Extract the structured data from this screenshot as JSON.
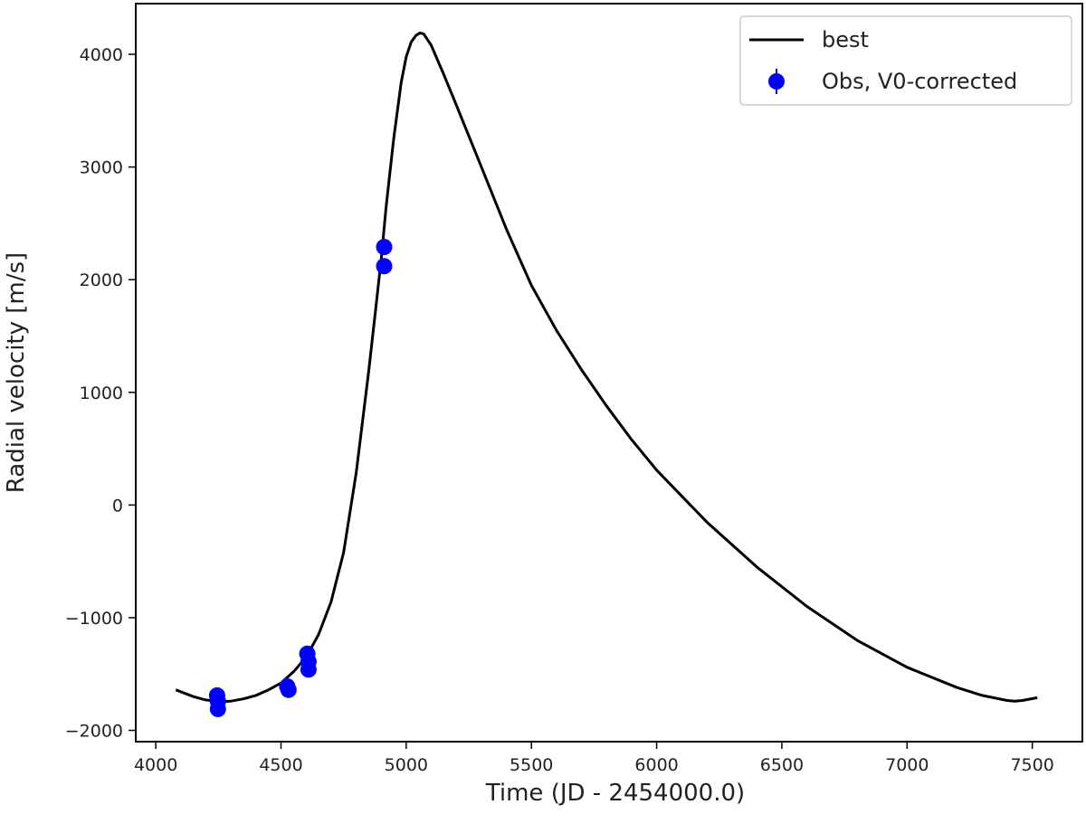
{
  "chart_data": {
    "type": "line",
    "xlabel": "Time (JD - 2454000.0)",
    "ylabel": "Radial velocity [m/s]",
    "xlim": [
      3920,
      7700
    ],
    "ylim": [
      -2100,
      4450
    ],
    "xticks": [
      4000,
      4500,
      5000,
      5500,
      6000,
      6500,
      7000,
      7500
    ],
    "yticks": [
      -2000,
      -1000,
      0,
      1000,
      2000,
      3000,
      4000
    ],
    "xtick_labels": [
      "4000",
      "4500",
      "5000",
      "5500",
      "6000",
      "6500",
      "7000",
      "7500"
    ],
    "ytick_labels": [
      "−2000",
      "−1000",
      "0",
      "1000",
      "2000",
      "3000",
      "4000"
    ],
    "legend_position": "top-right",
    "colors": {
      "model": "#000000",
      "observations": "#0000ff"
    },
    "series": [
      {
        "name": "best",
        "kind": "line",
        "x": [
          4080,
          4150,
          4200,
          4260,
          4300,
          4350,
          4400,
          4450,
          4500,
          4550,
          4600,
          4650,
          4700,
          4750,
          4800,
          4850,
          4880,
          4900,
          4920,
          4950,
          4980,
          5000,
          5020,
          5040,
          5055,
          5070,
          5100,
          5150,
          5200,
          5300,
          5400,
          5500,
          5600,
          5700,
          5800,
          5900,
          6000,
          6200,
          6400,
          6600,
          6800,
          7000,
          7200,
          7300,
          7400,
          7430,
          7460,
          7520
        ],
        "y": [
          -1640,
          -1700,
          -1730,
          -1745,
          -1740,
          -1720,
          -1690,
          -1640,
          -1580,
          -1480,
          -1350,
          -1150,
          -860,
          -420,
          280,
          1180,
          1780,
          2180,
          2650,
          3250,
          3750,
          3980,
          4110,
          4170,
          4190,
          4180,
          4080,
          3820,
          3550,
          3000,
          2450,
          1950,
          1550,
          1200,
          880,
          580,
          310,
          -150,
          -550,
          -900,
          -1200,
          -1440,
          -1620,
          -1690,
          -1735,
          -1740,
          -1735,
          -1710
        ]
      },
      {
        "name": "Obs, V0-corrected",
        "kind": "errorbar",
        "x": [
          4245,
          4248,
          4248,
          4525,
          4530,
          4605,
          4610,
          4610,
          4912,
          4912
        ],
        "y": [
          -1690,
          -1740,
          -1810,
          -1610,
          -1640,
          -1320,
          -1390,
          -1460,
          2290,
          2120
        ],
        "yerr": [
          15,
          15,
          15,
          15,
          15,
          15,
          15,
          15,
          15,
          15
        ]
      }
    ]
  }
}
